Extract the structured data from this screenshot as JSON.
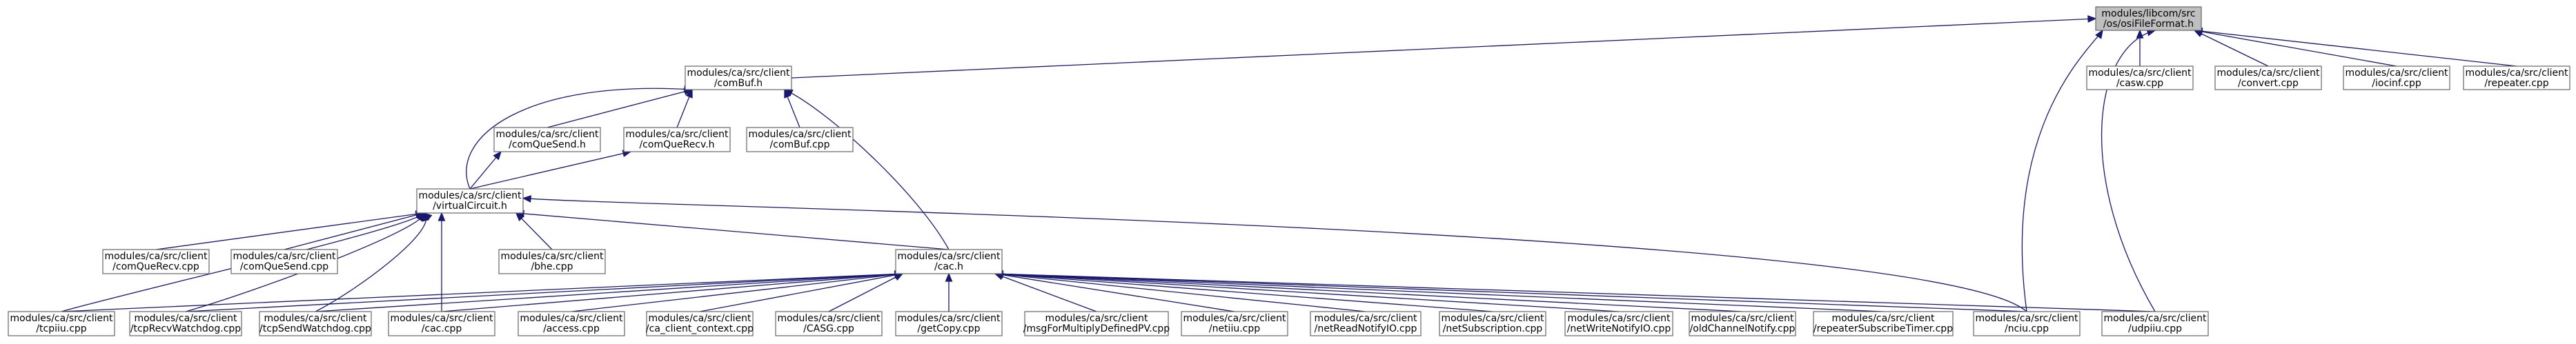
{
  "graph": {
    "title": "",
    "nodes": [
      {
        "id": "osiFileFormat",
        "lines": [
          "modules/libcom/src",
          "/os/osiFileFormat.h"
        ],
        "root": true
      },
      {
        "id": "comBuf_h",
        "lines": [
          "modules/ca/src/client",
          "/comBuf.h"
        ]
      },
      {
        "id": "casw",
        "lines": [
          "modules/ca/src/client",
          "/casw.cpp"
        ]
      },
      {
        "id": "convert",
        "lines": [
          "modules/ca/src/client",
          "/convert.cpp"
        ]
      },
      {
        "id": "iocinf",
        "lines": [
          "modules/ca/src/client",
          "/iocinf.cpp"
        ]
      },
      {
        "id": "repeater",
        "lines": [
          "modules/ca/src/client",
          "/repeater.cpp"
        ]
      },
      {
        "id": "comQueSend_h",
        "lines": [
          "modules/ca/src/client",
          "/comQueSend.h"
        ]
      },
      {
        "id": "comQueRecv_h",
        "lines": [
          "modules/ca/src/client",
          "/comQueRecv.h"
        ]
      },
      {
        "id": "comBuf_cpp",
        "lines": [
          "modules/ca/src/client",
          "/comBuf.cpp"
        ]
      },
      {
        "id": "virtualCircuit",
        "lines": [
          "modules/ca/src/client",
          "/virtualCircuit.h"
        ]
      },
      {
        "id": "comQueRecv_cpp",
        "lines": [
          "modules/ca/src/client",
          "/comQueRecv.cpp"
        ]
      },
      {
        "id": "comQueSend_cpp",
        "lines": [
          "modules/ca/src/client",
          "/comQueSend.cpp"
        ]
      },
      {
        "id": "bhe",
        "lines": [
          "modules/ca/src/client",
          "/bhe.cpp"
        ]
      },
      {
        "id": "cac_h",
        "lines": [
          "modules/ca/src/client",
          "/cac.h"
        ]
      },
      {
        "id": "tcpiiu",
        "lines": [
          "modules/ca/src/client",
          "/tcpiiu.cpp"
        ]
      },
      {
        "id": "tcpRecvWatchdog",
        "lines": [
          "modules/ca/src/client",
          "/tcpRecvWatchdog.cpp"
        ]
      },
      {
        "id": "tcpSendWatchdog",
        "lines": [
          "modules/ca/src/client",
          "/tcpSendWatchdog.cpp"
        ]
      },
      {
        "id": "cac_cpp",
        "lines": [
          "modules/ca/src/client",
          "/cac.cpp"
        ]
      },
      {
        "id": "access",
        "lines": [
          "modules/ca/src/client",
          "/access.cpp"
        ]
      },
      {
        "id": "ca_client_context",
        "lines": [
          "modules/ca/src/client",
          "/ca_client_context.cpp"
        ]
      },
      {
        "id": "CASG",
        "lines": [
          "modules/ca/src/client",
          "/CASG.cpp"
        ]
      },
      {
        "id": "getCopy",
        "lines": [
          "modules/ca/src/client",
          "/getCopy.cpp"
        ]
      },
      {
        "id": "msgForMultiply",
        "lines": [
          "modules/ca/src/client",
          "/msgForMultiplyDefinedPV.cpp"
        ]
      },
      {
        "id": "netiiu",
        "lines": [
          "modules/ca/src/client",
          "/netiiu.cpp"
        ]
      },
      {
        "id": "netReadNotifyIO",
        "lines": [
          "modules/ca/src/client",
          "/netReadNotifyIO.cpp"
        ]
      },
      {
        "id": "netSubscription",
        "lines": [
          "modules/ca/src/client",
          "/netSubscription.cpp"
        ]
      },
      {
        "id": "netWriteNotifyIO",
        "lines": [
          "modules/ca/src/client",
          "/netWriteNotifyIO.cpp"
        ]
      },
      {
        "id": "oldChannelNotify",
        "lines": [
          "modules/ca/src/client",
          "/oldChannelNotify.cpp"
        ]
      },
      {
        "id": "repeaterSubscribeTimer",
        "lines": [
          "modules/ca/src/client",
          "/repeaterSubscribeTimer.cpp"
        ]
      },
      {
        "id": "nciu",
        "lines": [
          "modules/ca/src/client",
          "/nciu.cpp"
        ]
      },
      {
        "id": "udpiiu",
        "lines": [
          "modules/ca/src/client",
          "/udpiiu.cpp"
        ]
      }
    ],
    "edges": [
      [
        "comBuf_h",
        "osiFileFormat"
      ],
      [
        "casw",
        "osiFileFormat"
      ],
      [
        "convert",
        "osiFileFormat"
      ],
      [
        "iocinf",
        "osiFileFormat"
      ],
      [
        "repeater",
        "osiFileFormat"
      ],
      [
        "nciu",
        "osiFileFormat"
      ],
      [
        "udpiiu",
        "osiFileFormat"
      ],
      [
        "comQueSend_h",
        "comBuf_h"
      ],
      [
        "comQueRecv_h",
        "comBuf_h"
      ],
      [
        "comBuf_cpp",
        "comBuf_h"
      ],
      [
        "virtualCircuit",
        "comBuf_h"
      ],
      [
        "cac_h",
        "comBuf_h"
      ],
      [
        "virtualCircuit",
        "comQueSend_h"
      ],
      [
        "virtualCircuit",
        "comQueRecv_h"
      ],
      [
        "comQueRecv_cpp",
        "virtualCircuit"
      ],
      [
        "comQueSend_cpp",
        "virtualCircuit"
      ],
      [
        "bhe",
        "virtualCircuit"
      ],
      [
        "cac_h",
        "virtualCircuit"
      ],
      [
        "tcpiiu",
        "virtualCircuit"
      ],
      [
        "tcpRecvWatchdog",
        "virtualCircuit"
      ],
      [
        "tcpSendWatchdog",
        "virtualCircuit"
      ],
      [
        "cac_cpp",
        "virtualCircuit"
      ],
      [
        "nciu",
        "virtualCircuit"
      ],
      [
        "tcpiiu",
        "cac_h"
      ],
      [
        "tcpRecvWatchdog",
        "cac_h"
      ],
      [
        "tcpSendWatchdog",
        "cac_h"
      ],
      [
        "cac_cpp",
        "cac_h"
      ],
      [
        "access",
        "cac_h"
      ],
      [
        "ca_client_context",
        "cac_h"
      ],
      [
        "CASG",
        "cac_h"
      ],
      [
        "getCopy",
        "cac_h"
      ],
      [
        "msgForMultiply",
        "cac_h"
      ],
      [
        "netiiu",
        "cac_h"
      ],
      [
        "netReadNotifyIO",
        "cac_h"
      ],
      [
        "netSubscription",
        "cac_h"
      ],
      [
        "netWriteNotifyIO",
        "cac_h"
      ],
      [
        "oldChannelNotify",
        "cac_h"
      ],
      [
        "repeaterSubscribeTimer",
        "cac_h"
      ],
      [
        "nciu",
        "cac_h"
      ],
      [
        "udpiiu",
        "cac_h"
      ]
    ]
  }
}
